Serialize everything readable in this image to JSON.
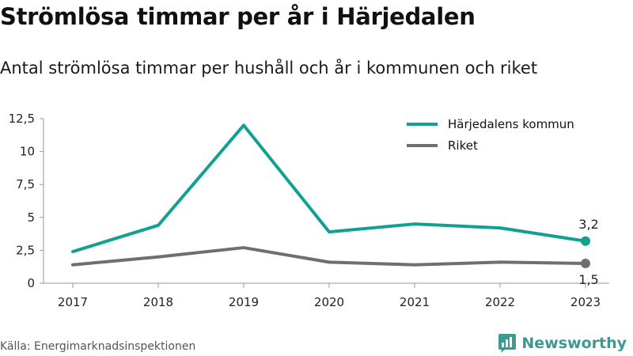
{
  "title": "Strömlösa timmar per år i Härjedalen",
  "subtitle": "Antal strömlösa timmar per hushåll och år i kommunen och riket",
  "source": "Källa: Energimarknadsinspektionen",
  "brand": {
    "name": "Newsworthy",
    "icon": "bar-chart-logo-icon",
    "color": "#3d9a8e"
  },
  "chart_data": {
    "type": "line",
    "categories": [
      "2017",
      "2018",
      "2019",
      "2020",
      "2021",
      "2022",
      "2023"
    ],
    "ylim": [
      0,
      12.5
    ],
    "yticks": [
      "0",
      "2,5",
      "5",
      "7,5",
      "10",
      "12,5"
    ],
    "ytick_values": [
      0,
      2.5,
      5,
      7.5,
      10,
      12.5
    ],
    "grid": false,
    "legend_position": "top-right",
    "series": [
      {
        "name": "Härjedalens kommun",
        "color": "#12a091",
        "values": [
          2.4,
          4.4,
          12.0,
          3.9,
          4.5,
          4.2,
          3.2
        ],
        "end_label": "3,2"
      },
      {
        "name": "Riket",
        "color": "#6e6e73",
        "values": [
          1.4,
          2.0,
          2.7,
          1.6,
          1.4,
          1.6,
          1.5
        ],
        "end_label": "1,5"
      }
    ]
  }
}
